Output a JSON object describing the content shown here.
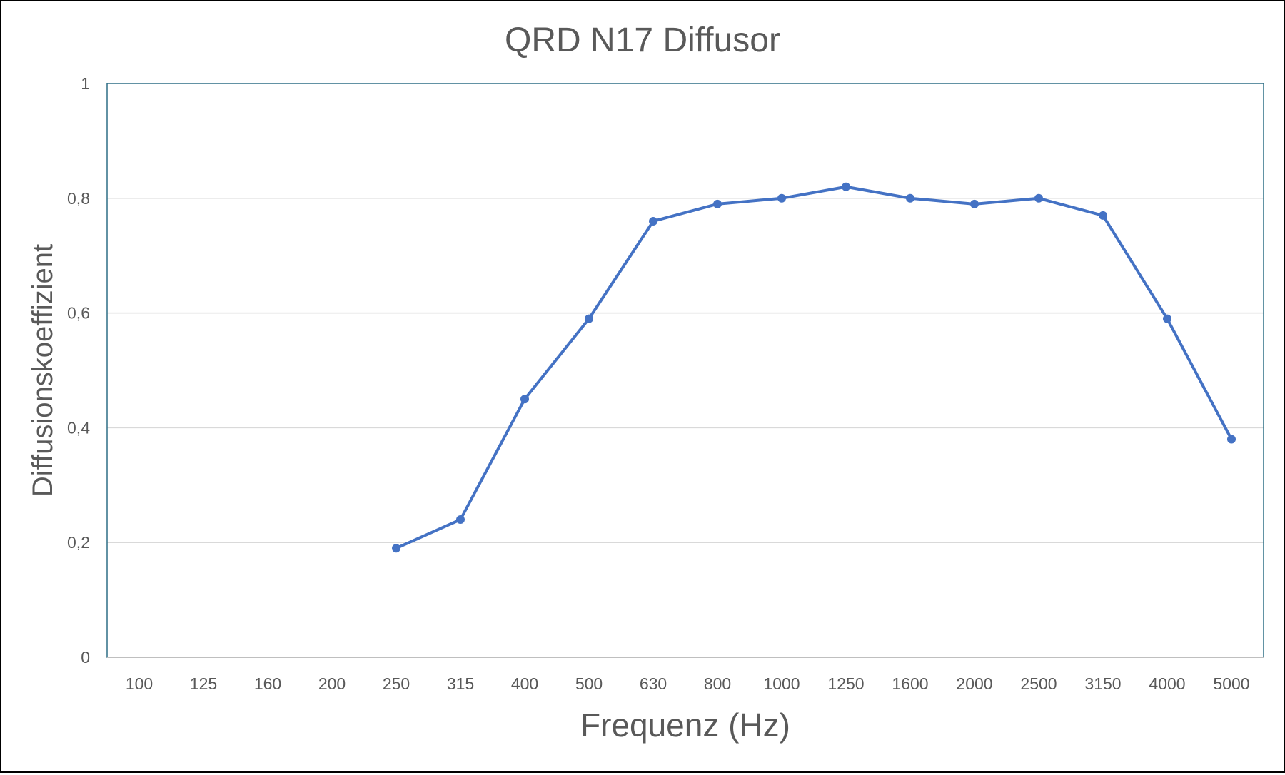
{
  "chart_data": {
    "type": "line",
    "title": "QRD N17 Diffusor",
    "xlabel": "Frequenz (Hz)",
    "ylabel": "Diffusionskoeffizient",
    "categories": [
      "100",
      "125",
      "160",
      "200",
      "250",
      "315",
      "400",
      "500",
      "630",
      "800",
      "1000",
      "1250",
      "1600",
      "2000",
      "2500",
      "3150",
      "4000",
      "5000"
    ],
    "series": [
      {
        "values": [
          null,
          null,
          null,
          null,
          0.19,
          0.24,
          0.45,
          0.59,
          0.76,
          0.79,
          0.8,
          0.82,
          0.8,
          0.79,
          0.8,
          0.77,
          0.59,
          0.38
        ],
        "color": "#4472c4"
      }
    ],
    "ylim": [
      0,
      1
    ],
    "yticks": [
      0,
      0.2,
      0.4,
      0.6,
      0.8,
      1
    ],
    "ytick_labels": [
      "0",
      "0,2",
      "0,4",
      "0,6",
      "0,8",
      "1"
    ],
    "grid": true,
    "legend": "none",
    "colors": {
      "line": "#4472c4",
      "grid": "#d9d9d9",
      "plot_border": "#2e6f86",
      "text": "#595959"
    }
  }
}
